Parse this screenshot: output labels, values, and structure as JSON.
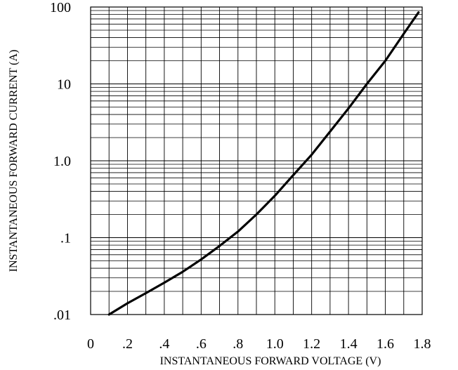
{
  "chart_data": {
    "type": "line",
    "xlabel": "INSTANTANEOUS FORWARD VOLTAGE (V)",
    "ylabel": "INSTANTANEOUS FORWARD CURRENT (A)",
    "xlim": [
      0,
      1.8
    ],
    "ylim": [
      0.01,
      100
    ],
    "y_scale": "log",
    "grid": true,
    "x_ticks": [
      {
        "value": 0,
        "label": "0"
      },
      {
        "value": 0.2,
        "label": ".2"
      },
      {
        "value": 0.4,
        "label": ".4"
      },
      {
        "value": 0.6,
        "label": ".6"
      },
      {
        "value": 0.8,
        "label": ".8"
      },
      {
        "value": 1.0,
        "label": "1.0"
      },
      {
        "value": 1.2,
        "label": "1.2"
      },
      {
        "value": 1.4,
        "label": "1.4"
      },
      {
        "value": 1.6,
        "label": "1.6"
      },
      {
        "value": 1.8,
        "label": "1.8"
      }
    ],
    "y_ticks": [
      {
        "value": 100,
        "label": "100"
      },
      {
        "value": 10,
        "label": "10"
      },
      {
        "value": 1,
        "label": "1.0"
      },
      {
        "value": 0.1,
        "label": ".1"
      },
      {
        "value": 0.01,
        "label": ".01"
      }
    ],
    "series": [
      {
        "color": "#000000",
        "x": [
          0.1,
          0.2,
          0.3,
          0.4,
          0.5,
          0.6,
          0.7,
          0.8,
          0.9,
          1.0,
          1.1,
          1.2,
          1.3,
          1.4,
          1.5,
          1.6,
          1.7,
          1.78
        ],
        "y": [
          0.01,
          0.014,
          0.019,
          0.026,
          0.036,
          0.052,
          0.078,
          0.12,
          0.2,
          0.35,
          0.65,
          1.2,
          2.4,
          4.8,
          10,
          20,
          45,
          85
        ]
      }
    ]
  }
}
